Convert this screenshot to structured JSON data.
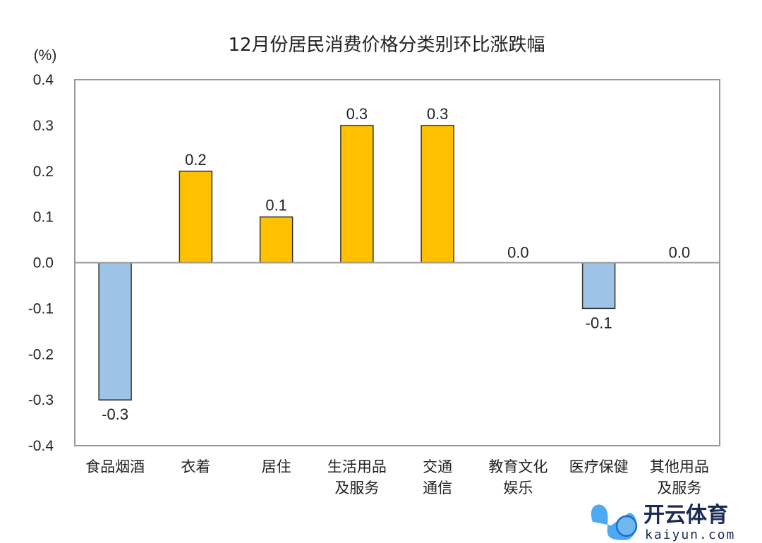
{
  "chart_data": {
    "type": "bar",
    "title": "12月份居民消费价格分类别环比涨跌幅",
    "ylabel": "(%)",
    "xlabel": "",
    "ylim": [
      -0.4,
      0.4
    ],
    "yticks": [
      "0.4",
      "0.3",
      "0.2",
      "0.1",
      "0.0",
      "-0.1",
      "-0.2",
      "-0.3",
      "-0.4"
    ],
    "ytick_values": [
      0.4,
      0.3,
      0.2,
      0.1,
      0.0,
      -0.1,
      -0.2,
      -0.3,
      -0.4
    ],
    "categories": [
      [
        "食品烟酒"
      ],
      [
        "衣着"
      ],
      [
        "居住"
      ],
      [
        "生活用品",
        "及服务"
      ],
      [
        "交通",
        "通信"
      ],
      [
        "教育文化",
        "娱乐"
      ],
      [
        "医疗保健"
      ],
      [
        "其他用品",
        "及服务"
      ]
    ],
    "values": [
      -0.3,
      0.2,
      0.1,
      0.3,
      0.3,
      0.0,
      -0.1,
      0.0
    ],
    "data_labels": [
      "-0.3",
      "0.2",
      "0.1",
      "0.3",
      "0.3",
      "0.0",
      "-0.1",
      "0.0"
    ],
    "grid": false,
    "colors": {
      "positive": "#FFC000",
      "negative": "#9DC3E6",
      "border": "#333333",
      "zero_line": "#999999"
    }
  },
  "watermark": {
    "text": "开云体育",
    "url": "kaiyun.com"
  }
}
